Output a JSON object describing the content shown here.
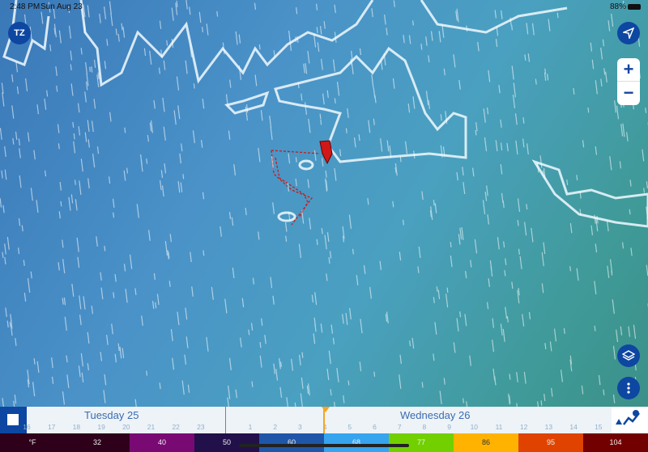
{
  "status_bar": {
    "time": "2:48 PM",
    "date": "Sun Aug 23",
    "battery": "88%"
  },
  "app": {
    "logo": "TZ"
  },
  "controls": {
    "zoom_in": "+",
    "zoom_out": "−",
    "locate_icon": "navigation-arrow-icon",
    "layers_icon": "layers-icon",
    "more_icon": "more-vertical-icon",
    "weather_icon": "weather-chart-icon"
  },
  "timeline": {
    "days": [
      {
        "label": "Tuesday 25"
      },
      {
        "label": "Wednesday 26"
      }
    ],
    "hours_day1": [
      "16",
      "17",
      "18",
      "19",
      "20",
      "21",
      "22",
      "23"
    ],
    "hours_day2": [
      "1",
      "2",
      "3",
      "4",
      "5",
      "6",
      "7",
      "8",
      "9",
      "10",
      "11",
      "12",
      "13",
      "14",
      "15"
    ],
    "current_hour": "4",
    "marker_color": "#f5a623"
  },
  "legend": {
    "unit": "°F",
    "items": [
      {
        "label": "°F",
        "color": "#2e0019"
      },
      {
        "label": "32",
        "color": "#2e0019"
      },
      {
        "label": "40",
        "color": "#790a74"
      },
      {
        "label": "50",
        "color": "#21104a"
      },
      {
        "label": "60",
        "color": "#1f56a8"
      },
      {
        "label": "68",
        "color": "#36a4ee"
      },
      {
        "label": "77",
        "color": "#72d000"
      },
      {
        "label": "86",
        "color": "#ffb300"
      },
      {
        "label": "95",
        "color": "#e04300"
      },
      {
        "label": "104",
        "color": "#730000"
      }
    ]
  },
  "route_color": "#d01818"
}
